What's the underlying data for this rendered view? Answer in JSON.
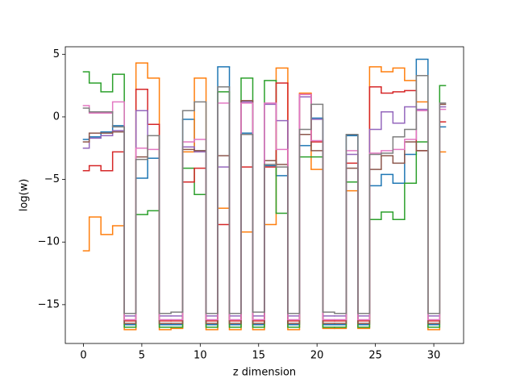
{
  "chart_data": {
    "type": "step",
    "xlabel": "z dimension",
    "ylabel": "log(w)",
    "x": [
      0,
      1,
      2,
      3,
      4,
      5,
      6,
      7,
      8,
      9,
      10,
      11,
      12,
      13,
      14,
      15,
      16,
      17,
      18,
      19,
      20,
      21,
      22,
      23,
      24,
      25,
      26,
      27,
      28,
      29,
      30,
      31
    ],
    "xlim": [
      -1.55,
      32.55
    ],
    "xticks": [
      0,
      5,
      10,
      15,
      20,
      25,
      30
    ],
    "ylim": [
      -18.1,
      5.6
    ],
    "yticks": [
      {
        "value": -15,
        "label": "−15"
      },
      {
        "value": -10,
        "label": "−10"
      },
      {
        "value": -5,
        "label": "−5"
      },
      0,
      5
    ],
    "series": [
      {
        "color": "#1f77b4",
        "values": [
          -1.8,
          -1.6,
          -1.2,
          -0.7,
          -16.6,
          -4.9,
          -3.3,
          -16.6,
          -16.6,
          -0.2,
          -2.7,
          -16.6,
          4.0,
          -16.6,
          -1.3,
          -16.6,
          -3.9,
          -4.7,
          -16.6,
          -2.3,
          -0.1,
          -16.6,
          -16.6,
          -1.5,
          -16.6,
          -5.5,
          -4.6,
          -5.3,
          -3.0,
          4.6,
          -16.6,
          -0.8
        ]
      },
      {
        "color": "#ff7f0e",
        "values": [
          -10.7,
          -8.0,
          -9.4,
          -8.7,
          -17.0,
          4.3,
          3.1,
          -17.0,
          -16.9,
          -2.8,
          3.1,
          -17.0,
          -7.3,
          -17.0,
          -9.2,
          -17.0,
          -8.6,
          3.9,
          -17.0,
          1.9,
          -4.2,
          -16.9,
          -16.9,
          -5.9,
          -16.9,
          4.0,
          3.6,
          3.9,
          2.9,
          1.2,
          -17.0,
          -2.8
        ]
      },
      {
        "color": "#2ca02c",
        "values": [
          3.6,
          2.7,
          2.0,
          3.4,
          -16.8,
          -7.8,
          -7.5,
          -16.8,
          -16.8,
          -4.1,
          -6.2,
          -16.8,
          2.0,
          -16.8,
          3.1,
          -16.8,
          2.9,
          -7.7,
          -16.8,
          -3.2,
          -3.2,
          -16.8,
          -16.8,
          -5.2,
          -16.8,
          -8.2,
          -7.6,
          -8.2,
          -5.3,
          -2.0,
          -16.8,
          2.5
        ]
      },
      {
        "color": "#d62728",
        "values": [
          -4.3,
          -3.9,
          -4.3,
          -2.8,
          -16.3,
          2.2,
          -0.6,
          -16.3,
          -16.3,
          -5.2,
          -4.1,
          -16.3,
          -8.6,
          -16.3,
          -4.0,
          -16.3,
          -4.0,
          2.7,
          -16.3,
          1.8,
          -2.0,
          -16.3,
          -16.3,
          -3.7,
          -16.3,
          2.4,
          1.9,
          2.0,
          2.1,
          -2.7,
          -16.3,
          -0.4
        ]
      },
      {
        "color": "#9467bd",
        "values": [
          -2.5,
          -1.7,
          -1.5,
          -1.1,
          -15.9,
          0.5,
          -1.5,
          -15.9,
          -15.9,
          -2.4,
          -2.8,
          -15.9,
          -4.0,
          -15.9,
          1.2,
          -15.9,
          1.0,
          -0.3,
          -15.9,
          1.6,
          -0.2,
          -15.9,
          -15.9,
          -3.0,
          -15.9,
          -1.0,
          0.4,
          -0.5,
          0.8,
          0.6,
          -15.9,
          0.8
        ]
      },
      {
        "color": "#8c564b",
        "values": [
          -2.0,
          -1.3,
          -1.3,
          -1.2,
          -16.5,
          -3.2,
          -1.5,
          -16.5,
          -16.5,
          -2.6,
          -2.7,
          -16.5,
          -3.1,
          -16.5,
          1.3,
          -16.5,
          -3.5,
          -3.8,
          -16.5,
          -1.4,
          -2.7,
          -16.5,
          -16.5,
          -4.1,
          -16.5,
          -4.2,
          -3.1,
          -3.7,
          -2.0,
          -2.7,
          -16.5,
          1.0
        ]
      },
      {
        "color": "#e377c2",
        "values": [
          0.9,
          0.3,
          0.3,
          1.2,
          -16.2,
          -2.5,
          -2.6,
          -16.2,
          -16.2,
          -2.0,
          -1.8,
          -16.2,
          1.1,
          -16.2,
          1.1,
          -16.2,
          1.1,
          -2.6,
          -16.2,
          1.8,
          -1.9,
          -16.2,
          -16.2,
          -2.7,
          -16.2,
          -2.9,
          -2.7,
          -2.6,
          -1.8,
          0.5,
          -16.2,
          0.6
        ]
      },
      {
        "color": "#7f7f7f",
        "values": [
          0.7,
          0.4,
          0.4,
          -0.8,
          -15.7,
          -3.4,
          -1.5,
          -15.7,
          -15.6,
          0.5,
          1.2,
          -15.7,
          2.4,
          -15.7,
          -1.4,
          -15.6,
          -3.8,
          -4.0,
          -15.7,
          -1.0,
          1.0,
          -15.6,
          -15.7,
          -1.4,
          -15.7,
          -3.0,
          -2.9,
          -1.6,
          -1.0,
          3.3,
          -15.7,
          1.1
        ]
      }
    ]
  }
}
